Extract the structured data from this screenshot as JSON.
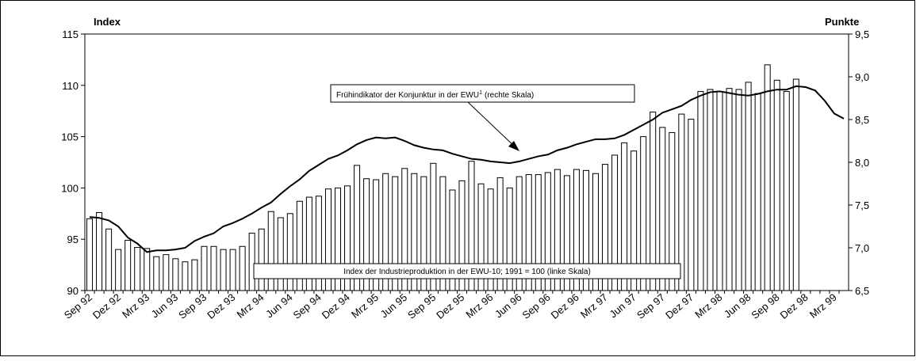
{
  "chart_data": {
    "type": "bar",
    "y_title": "Index",
    "y2_title": "Punkte",
    "annotations": [
      {
        "text": "Frühindikator der Konjunktur in der EWU",
        "sup": "1",
        "after": "(rechte Skala)"
      },
      {
        "text": "Index der Industrieproduktion in der EWU-10; 1991 = 100 (linke Skala)"
      }
    ],
    "categories": [
      "Sep 92",
      null,
      null,
      "Dez 92",
      null,
      null,
      "Mrz 93",
      null,
      null,
      "Jun 93",
      null,
      null,
      "Sep 93",
      null,
      null,
      "Dez 93",
      null,
      null,
      "Mrz 94",
      null,
      null,
      "Jun 94",
      null,
      null,
      "Sep 94",
      null,
      null,
      "Dez 94",
      null,
      null,
      "Mrz 95",
      null,
      null,
      "Jun 95",
      null,
      null,
      "Sep 95",
      null,
      null,
      "Dez 95",
      null,
      null,
      "Mrz 96",
      null,
      null,
      "Jun 96",
      null,
      null,
      "Sep 96",
      null,
      null,
      "Dez 96",
      null,
      null,
      "Mrz 97",
      null,
      null,
      "Jun 97",
      null,
      null,
      "Sep 97",
      null,
      null,
      "Dez 97",
      null,
      null,
      "Mrz 98",
      null,
      null,
      "Jun 98",
      null,
      null,
      "Sep 98",
      null,
      null,
      "Dez 98",
      null,
      null,
      "Mrz 99",
      null
    ],
    "series": [
      {
        "type": "bar",
        "color": "#ffffff",
        "values": [
          97.0,
          97.6,
          96.0,
          94.0,
          94.9,
          94.2,
          94.1,
          93.3,
          93.5,
          93.1,
          92.8,
          93.0,
          94.3,
          94.3,
          94.0,
          94.0,
          94.3,
          95.6,
          96.0,
          97.7,
          97.1,
          97.5,
          98.7,
          99.1,
          99.2,
          99.9,
          100.0,
          100.2,
          102.2,
          100.9,
          100.8,
          101.4,
          101.1,
          101.9,
          101.4,
          101.1,
          102.4,
          101.1,
          99.8,
          100.7,
          102.6,
          100.4,
          99.9,
          101.0,
          100.0,
          101.1,
          101.3,
          101.3,
          101.5,
          101.8,
          101.2,
          101.8,
          101.7,
          101.4,
          102.3,
          103.2,
          104.4,
          103.6,
          105.0,
          107.4,
          105.9,
          105.4,
          107.2,
          106.7,
          109.4,
          109.6,
          109.4,
          109.7,
          109.6,
          110.3,
          109.2,
          112.0,
          110.5,
          109.4,
          110.6,
          null,
          null,
          null,
          null,
          null
        ]
      },
      {
        "type": "line",
        "axis": "y2",
        "color": "#000000",
        "values": [
          7.36,
          7.35,
          7.32,
          7.25,
          7.12,
          7.05,
          6.95,
          6.97,
          6.97,
          6.98,
          7.0,
          7.08,
          7.13,
          7.17,
          7.25,
          7.29,
          7.34,
          7.4,
          7.47,
          7.53,
          7.63,
          7.72,
          7.8,
          7.9,
          7.97,
          8.04,
          8.08,
          8.14,
          8.21,
          8.26,
          8.29,
          8.28,
          8.29,
          8.25,
          8.2,
          8.17,
          8.15,
          8.14,
          8.1,
          8.07,
          8.04,
          8.03,
          8.01,
          8.0,
          7.99,
          8.01,
          8.04,
          8.07,
          8.09,
          8.14,
          8.17,
          8.21,
          8.24,
          8.27,
          8.27,
          8.28,
          8.32,
          8.38,
          8.44,
          8.5,
          8.58,
          8.62,
          8.66,
          8.73,
          8.78,
          8.82,
          8.83,
          8.81,
          8.79,
          8.78,
          8.8,
          8.83,
          8.85,
          8.85,
          8.89,
          8.88,
          8.84,
          8.72,
          8.57,
          8.51
        ]
      }
    ],
    "ylim": [
      90,
      115
    ],
    "yticks": [
      90,
      95,
      100,
      105,
      110,
      115
    ],
    "y2lim": [
      6.5,
      9.5
    ],
    "y2ticks": [
      {
        "value": 6.5,
        "label": "6,5"
      },
      {
        "value": 7.0,
        "label": "7,0"
      },
      {
        "value": 7.5,
        "label": "7,5"
      },
      {
        "value": 8.0,
        "label": "8,0"
      },
      {
        "value": 8.5,
        "label": "8,5"
      },
      {
        "value": 9.0,
        "label": "9,0"
      },
      {
        "value": 9.5,
        "label": "9,5"
      }
    ]
  }
}
